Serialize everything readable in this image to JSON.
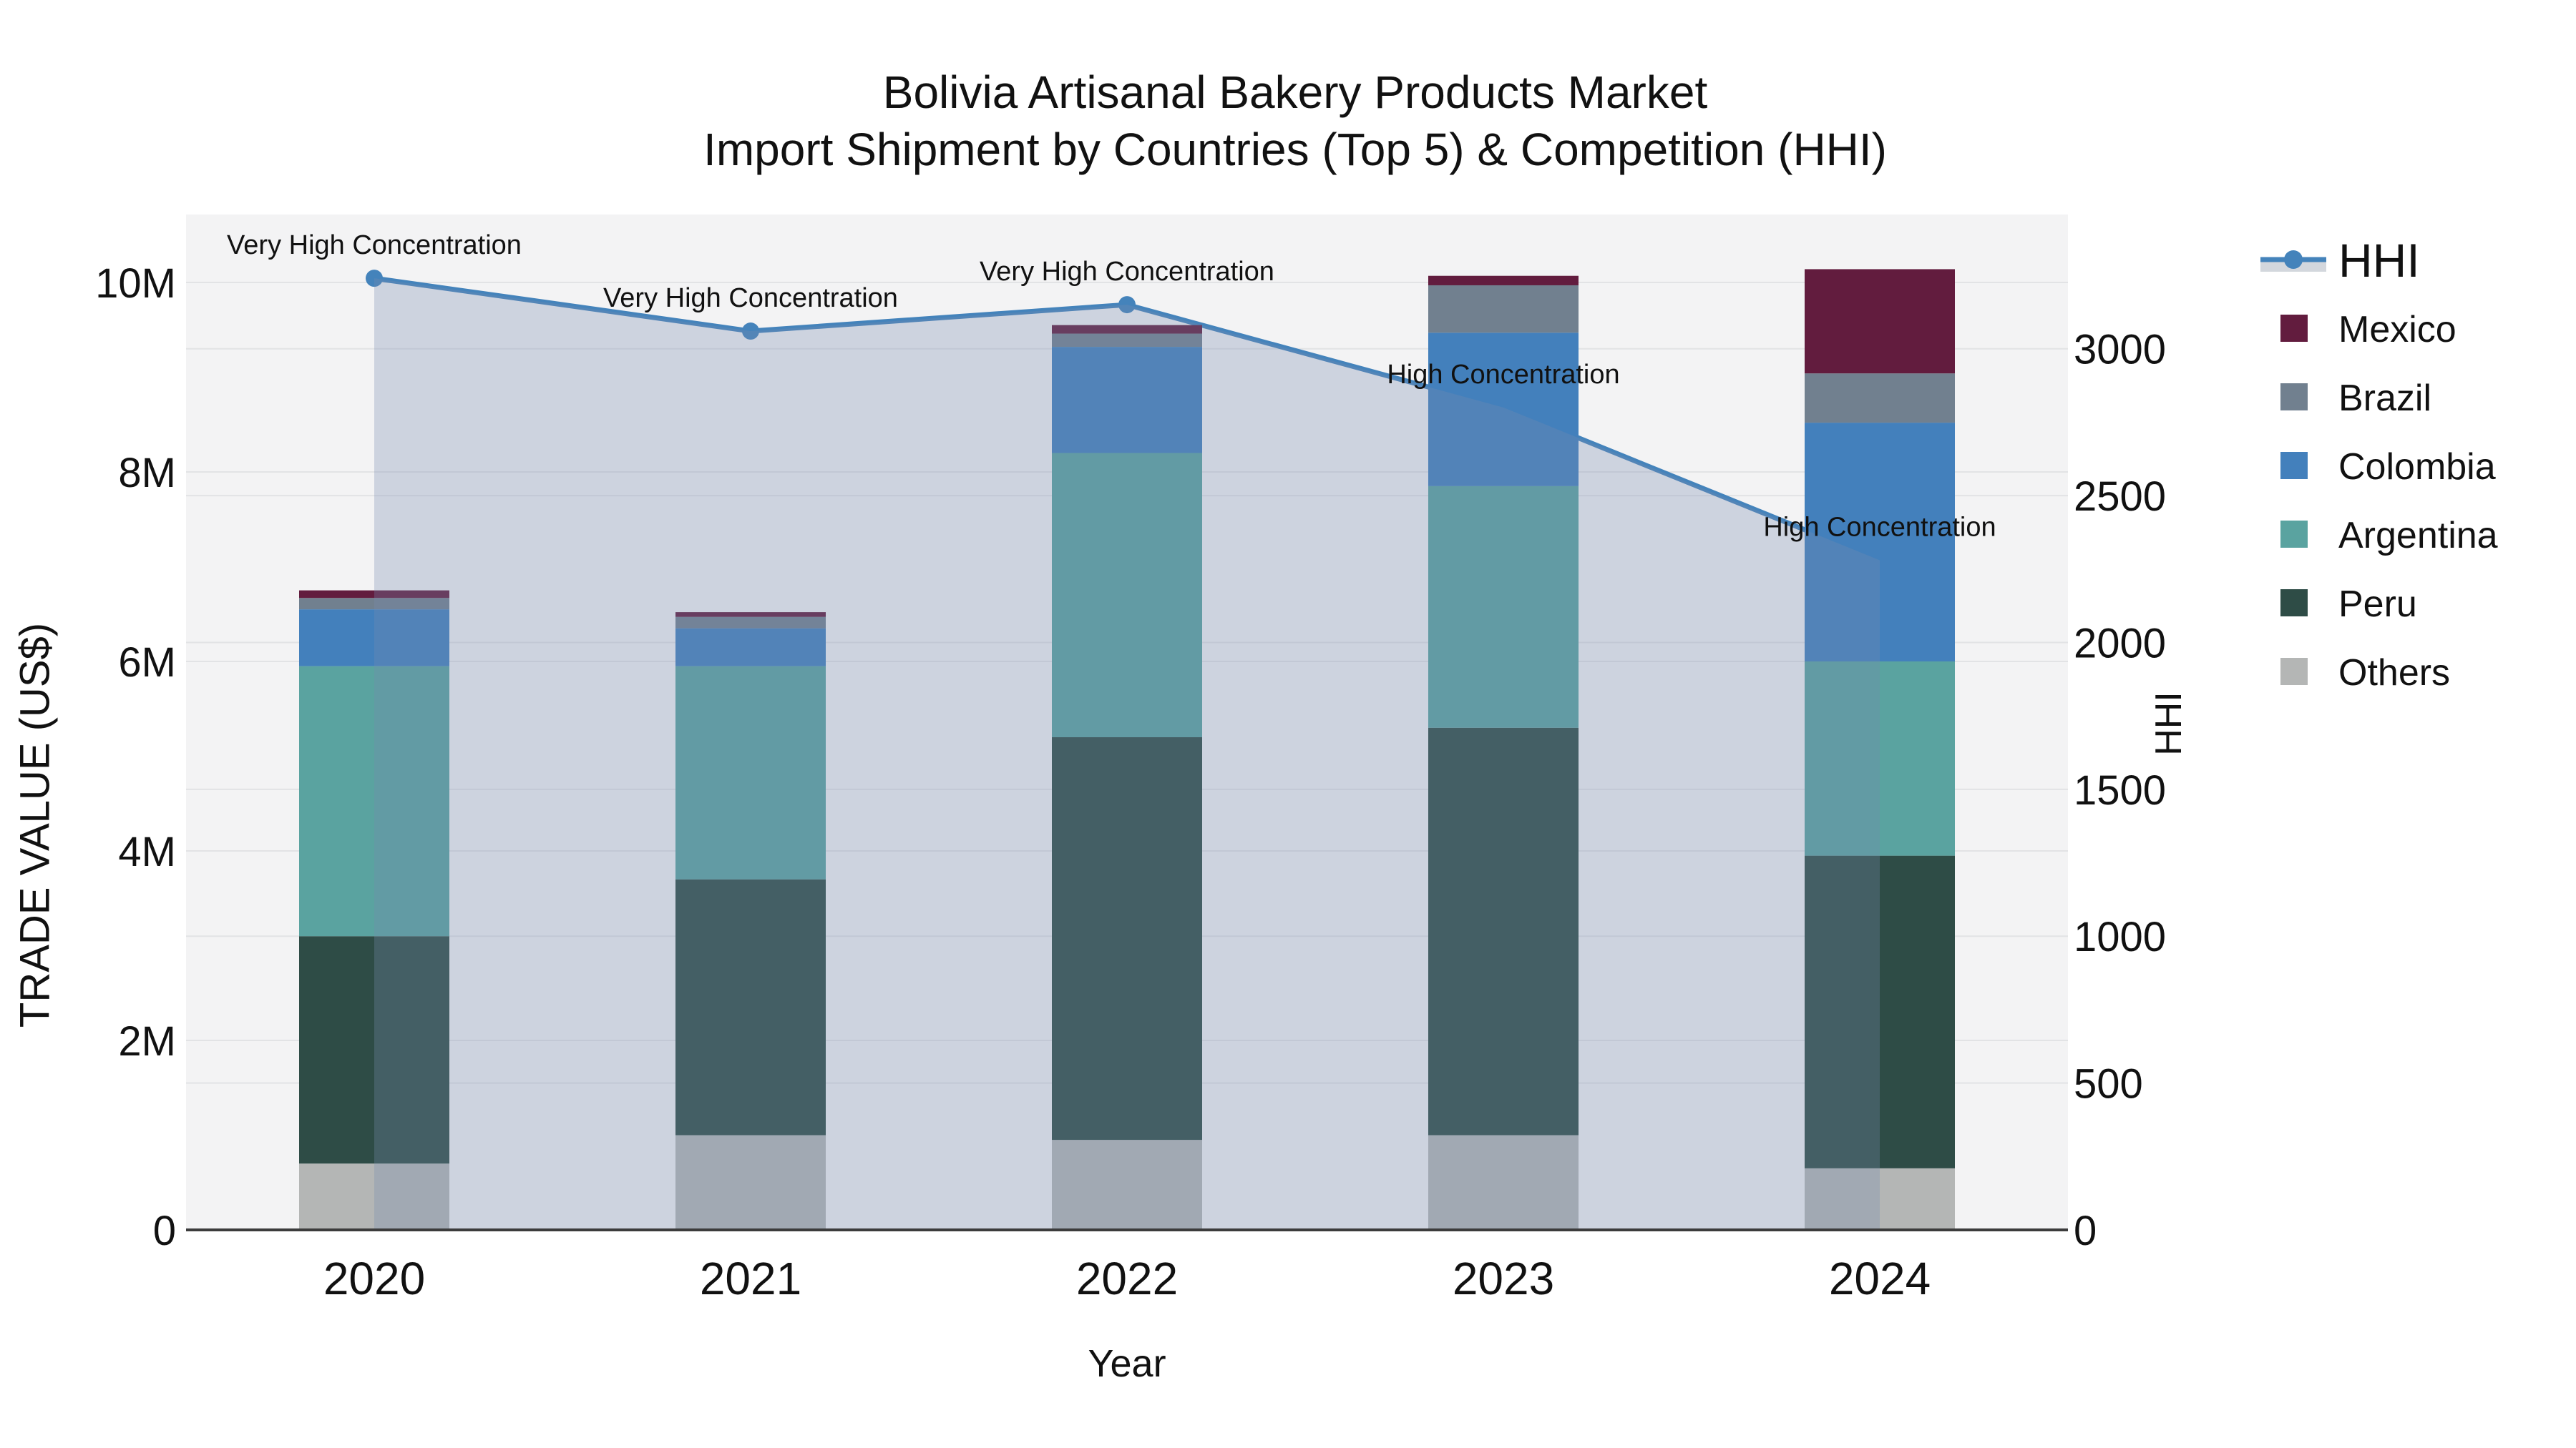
{
  "title": {
    "line1": "Bolivia Artisanal Bakery Products Market",
    "line2": "Import Shipment by Countries (Top 5) & Competition (HHI)"
  },
  "colors": {
    "plot_bg": "#f3f3f4",
    "grid": "#e2e3e5",
    "axis_line": "#3c3c3c",
    "text": "#111111",
    "hhi_line": "#4483bb",
    "area_overlay": "rgba(120,140,175,0.30)",
    "legend_area_band": "#d3d7dd"
  },
  "legend": [
    {
      "label": "HHI",
      "type": "line",
      "color": "#4483bb"
    },
    {
      "label": "Mexico",
      "type": "square",
      "color": "#621c3e"
    },
    {
      "label": "Brazil",
      "type": "square",
      "color": "#71808f"
    },
    {
      "label": "Colombia",
      "type": "square",
      "color": "#4380bc"
    },
    {
      "label": "Argentina",
      "type": "square",
      "color": "#5aa3a0"
    },
    {
      "label": "Peru",
      "type": "square",
      "color": "#2e4c46"
    },
    {
      "label": "Others",
      "type": "square",
      "color": "#b4b6b5"
    }
  ],
  "chart_data": {
    "type": "bar",
    "subtype": "stacked-bars-with-line",
    "title_lines": [
      "Bolivia Artisanal Bakery Products Market",
      "Import Shipment by Countries (Top 5) & Competition (HHI)"
    ],
    "categories": [
      "2020",
      "2021",
      "2022",
      "2023",
      "2024"
    ],
    "bar_value_unit": "USD millions (trade value)",
    "stack_order_bottom_to_top": [
      "Others",
      "Peru",
      "Argentina",
      "Colombia",
      "Brazil",
      "Mexico"
    ],
    "series": [
      {
        "name": "Others",
        "color": "#b4b6b5",
        "values": [
          0.7,
          1.0,
          0.95,
          1.0,
          0.65
        ]
      },
      {
        "name": "Peru",
        "color": "#2e4c46",
        "values": [
          2.4,
          2.7,
          4.25,
          4.3,
          3.3
        ]
      },
      {
        "name": "Argentina",
        "color": "#5aa3a0",
        "values": [
          2.85,
          2.25,
          3.0,
          2.55,
          2.05
        ]
      },
      {
        "name": "Colombia",
        "color": "#4380bc",
        "values": [
          0.6,
          0.4,
          1.12,
          1.62,
          2.52
        ]
      },
      {
        "name": "Brazil",
        "color": "#71808f",
        "values": [
          0.12,
          0.12,
          0.14,
          0.5,
          0.52
        ]
      },
      {
        "name": "Mexico",
        "color": "#621c3e",
        "values": [
          0.08,
          0.05,
          0.09,
          0.1,
          1.1
        ]
      }
    ],
    "bar_totals_musd": [
      6.75,
      6.52,
      9.55,
      10.07,
      10.14
    ],
    "line_series": {
      "name": "HHI",
      "axis": "right",
      "color": "#4483bb",
      "values": [
        3240,
        3060,
        3150,
        2800,
        2280
      ],
      "has_area_fill": true,
      "area_fill": "rgba(120,140,175,0.30)",
      "marker": "circle"
    },
    "annotations": [
      {
        "category": "2020",
        "text": "Very High Concentration"
      },
      {
        "category": "2021",
        "text": "Very High Concentration"
      },
      {
        "category": "2022",
        "text": "Very High Concentration"
      },
      {
        "category": "2023",
        "text": "High Concentration"
      },
      {
        "category": "2024",
        "text": "High Concentration"
      }
    ],
    "left_axis": {
      "title": "TRADE VALUE (US$)",
      "ticks": [
        "0",
        "2M",
        "4M",
        "6M",
        "8M",
        "10M"
      ],
      "tick_values_musd": [
        0,
        2,
        4,
        6,
        8,
        10
      ],
      "range_musd": [
        0,
        10.72
      ]
    },
    "right_axis": {
      "title": "HHI",
      "ticks": [
        "0",
        "500",
        "1000",
        "1500",
        "2000",
        "2500",
        "3000"
      ],
      "tick_values": [
        0,
        500,
        1000,
        1500,
        2000,
        2500,
        3000
      ],
      "range": [
        0,
        3460
      ]
    },
    "x_axis": {
      "title": "Year"
    },
    "grid": true,
    "legend_position": "right"
  }
}
